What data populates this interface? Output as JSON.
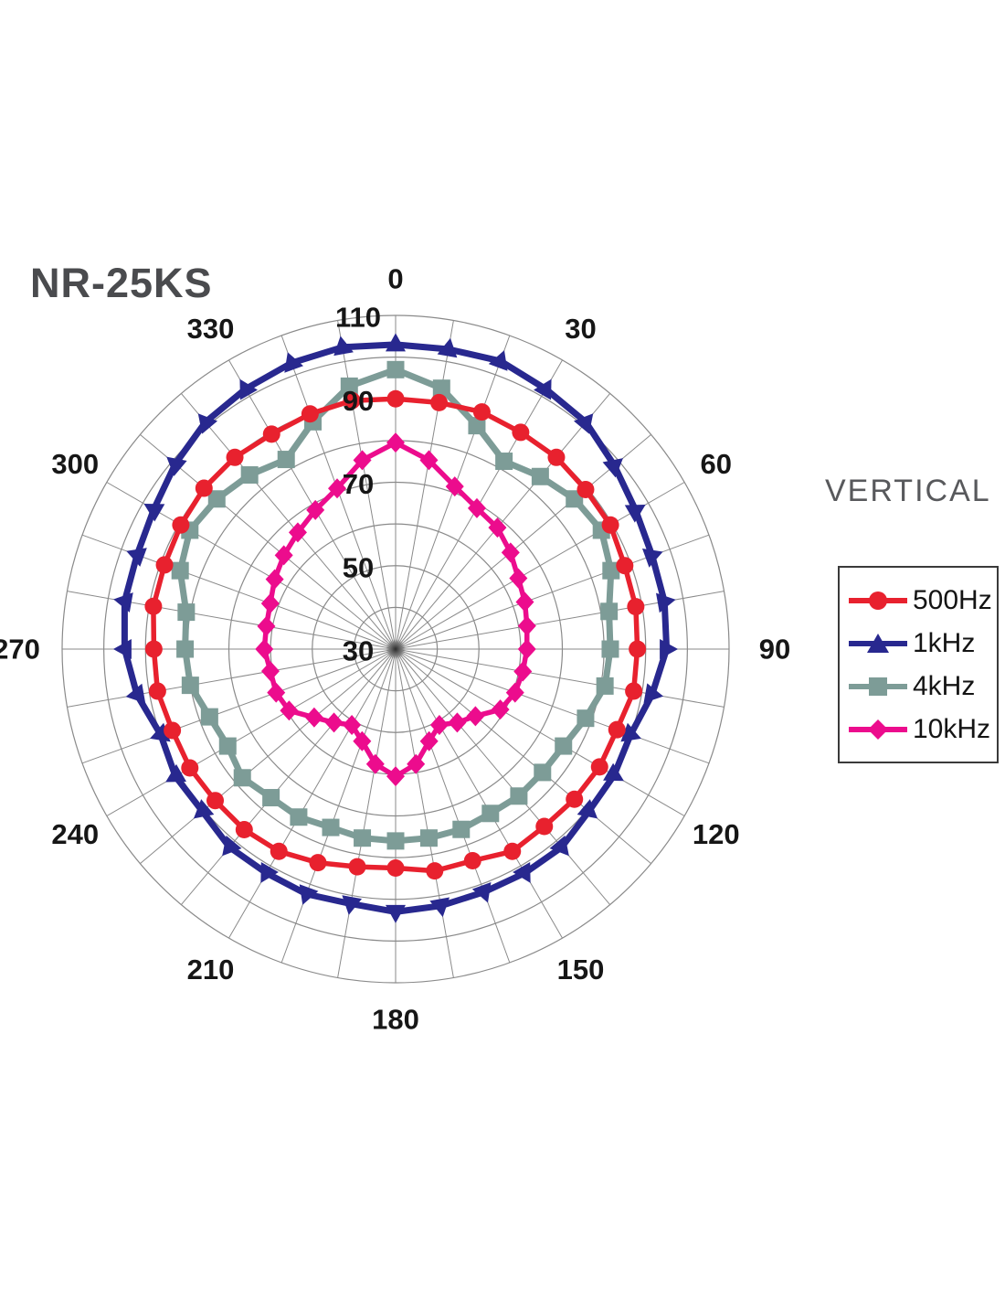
{
  "title": "NR-25KS",
  "orientation_label": "VERTICAL",
  "chart_data": {
    "type": "line",
    "subtype": "polar-directivity",
    "title": "NR-25KS",
    "panel_label": "VERTICAL",
    "angle_unit": "degrees",
    "angle_tick_labels": [
      "0",
      "30",
      "60",
      "90",
      "120",
      "150",
      "180",
      "210",
      "240",
      "270",
      "300",
      "330"
    ],
    "radial_axis": {
      "min": 30,
      "max": 110,
      "ring_step": 10,
      "tick_labels": [
        "110",
        "90",
        "70",
        "50",
        "30"
      ]
    },
    "grid": true,
    "legend_position": "right",
    "angles": [
      0,
      10,
      20,
      30,
      40,
      50,
      60,
      70,
      80,
      90,
      100,
      110,
      120,
      130,
      140,
      150,
      160,
      170,
      180,
      190,
      200,
      210,
      220,
      230,
      240,
      250,
      260,
      270,
      280,
      290,
      300,
      310,
      320,
      330,
      340,
      350
    ],
    "series": [
      {
        "name": "500Hz",
        "color": "#e8212e",
        "marker": "circle",
        "values": [
          90,
          90,
          90.5,
          90,
          90,
          89.5,
          89.5,
          88.5,
          88.5,
          88,
          88,
          86.5,
          86.5,
          86,
          85.5,
          86,
          84,
          84,
          82.5,
          83,
          84.5,
          86,
          86.5,
          86.5,
          87,
          87,
          88,
          88,
          89,
          89,
          89.5,
          90,
          90,
          89.5,
          90,
          90.5
        ]
      },
      {
        "name": "1kHz",
        "color": "#28288f",
        "marker": "triangle",
        "values": [
          103,
          103,
          103.5,
          102,
          101,
          98.5,
          96.5,
          95.5,
          95.5,
          95,
          92.5,
          90,
          90.5,
          90.5,
          92,
          92,
          92,
          92.5,
          93,
          92,
          92.5,
          92,
          92,
          90.5,
          91,
          90,
          93,
          95,
          96,
          96,
          97,
          99,
          101,
          102,
          103,
          103.5
        ]
      },
      {
        "name": "4kHz",
        "color": "#7d9c97",
        "marker": "square",
        "values": [
          97,
          93.5,
          87,
          82,
          84,
          86,
          87,
          85,
          82,
          81.5,
          81,
          78.5,
          76.5,
          76,
          76,
          75.5,
          76,
          76,
          76,
          76,
          75.5,
          76.5,
          76.5,
          78,
          76.5,
          77.5,
          80,
          80.5,
          81,
          85,
          87,
          86,
          84.5,
          82.5,
          88,
          94
        ]
      },
      {
        "name": "10kHz",
        "color": "#ec0c8d",
        "marker": "diamond",
        "values": [
          79.5,
          76,
          71.5,
          69,
          68,
          66,
          64,
          63,
          62,
          61.5,
          61,
          60.5,
          59,
          55,
          53,
          51,
          53.5,
          58,
          60.5,
          58,
          53.5,
          51,
          53,
          55.5,
          59.5,
          60.5,
          60.5,
          61.5,
          61.5,
          62,
          63.5,
          65,
          66.5,
          68.5,
          71,
          76
        ]
      }
    ]
  }
}
